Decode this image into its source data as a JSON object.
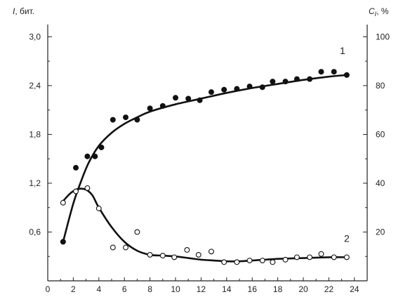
{
  "chart_data": {
    "type": "scatter",
    "title": "",
    "xlabel": "",
    "ylabel_left": {
      "symbol": "I",
      "unit": ", бит."
    },
    "ylabel_right": {
      "symbol": "C",
      "subscript": "I",
      "unit": ", %"
    },
    "xlim": [
      0,
      25
    ],
    "ylim_left": [
      0,
      3.15
    ],
    "ylim_right": [
      0,
      105
    ],
    "x_ticks": [
      "0",
      "2",
      "4",
      "6",
      "8",
      "10",
      "12",
      "14",
      "16",
      "18",
      "20",
      "22",
      "24"
    ],
    "y_left_ticks": [
      "0,6",
      "1,2",
      "1,8",
      "2,4",
      "3,0"
    ],
    "y_right_ticks": [
      "20",
      "40",
      "60",
      "80",
      "100"
    ],
    "grid": false,
    "series": [
      {
        "name": "1",
        "axis": "left",
        "marker": "filled-circle",
        "points": [
          [
            1.2,
            0.48
          ],
          [
            2.2,
            1.39
          ],
          [
            3.1,
            1.53
          ],
          [
            3.7,
            1.53
          ],
          [
            4.2,
            1.64
          ],
          [
            5.1,
            1.98
          ],
          [
            6.1,
            2.01
          ],
          [
            7.0,
            1.98
          ],
          [
            8.0,
            2.12
          ],
          [
            9.0,
            2.15
          ],
          [
            10.0,
            2.25
          ],
          [
            11.0,
            2.24
          ],
          [
            11.9,
            2.22
          ],
          [
            12.8,
            2.32
          ],
          [
            13.8,
            2.35
          ],
          [
            14.8,
            2.36
          ],
          [
            15.8,
            2.39
          ],
          [
            16.8,
            2.38
          ],
          [
            17.6,
            2.45
          ],
          [
            18.6,
            2.45
          ],
          [
            19.5,
            2.48
          ],
          [
            20.5,
            2.48
          ],
          [
            21.4,
            2.57
          ],
          [
            22.4,
            2.57
          ],
          [
            23.4,
            2.53
          ]
        ],
        "curve": [
          [
            1.2,
            0.48
          ],
          [
            2.0,
            0.95
          ],
          [
            2.6,
            1.22
          ],
          [
            3.2,
            1.45
          ],
          [
            4.0,
            1.66
          ],
          [
            5.0,
            1.82
          ],
          [
            6.0,
            1.93
          ],
          [
            7.0,
            2.01
          ],
          [
            8.0,
            2.08
          ],
          [
            10.0,
            2.17
          ],
          [
            12.0,
            2.24
          ],
          [
            14.0,
            2.31
          ],
          [
            16.0,
            2.37
          ],
          [
            18.0,
            2.42
          ],
          [
            20.0,
            2.47
          ],
          [
            22.0,
            2.51
          ],
          [
            23.4,
            2.53
          ]
        ]
      },
      {
        "name": "2",
        "axis": "left",
        "marker": "open-circle",
        "points": [
          [
            1.2,
            0.96
          ],
          [
            2.2,
            1.1
          ],
          [
            3.1,
            1.14
          ],
          [
            4.0,
            0.89
          ],
          [
            5.1,
            0.41
          ],
          [
            6.1,
            0.41
          ],
          [
            7.0,
            0.6
          ],
          [
            8.0,
            0.32
          ],
          [
            9.0,
            0.31
          ],
          [
            9.9,
            0.29
          ],
          [
            10.9,
            0.38
          ],
          [
            11.8,
            0.32
          ],
          [
            12.8,
            0.36
          ],
          [
            13.8,
            0.23
          ],
          [
            14.8,
            0.23
          ],
          [
            15.8,
            0.25
          ],
          [
            16.8,
            0.25
          ],
          [
            17.6,
            0.23
          ],
          [
            18.6,
            0.26
          ],
          [
            19.5,
            0.29
          ],
          [
            20.5,
            0.29
          ],
          [
            21.4,
            0.33
          ],
          [
            22.4,
            0.29
          ],
          [
            23.4,
            0.29
          ]
        ],
        "curve": [
          [
            1.2,
            0.98
          ],
          [
            1.8,
            1.08
          ],
          [
            2.4,
            1.13
          ],
          [
            3.0,
            1.12
          ],
          [
            3.5,
            1.05
          ],
          [
            4.0,
            0.9
          ],
          [
            5.0,
            0.66
          ],
          [
            6.0,
            0.48
          ],
          [
            7.0,
            0.37
          ],
          [
            8.0,
            0.32
          ],
          [
            9.0,
            0.31
          ],
          [
            10.0,
            0.3
          ],
          [
            11.0,
            0.28
          ],
          [
            12.0,
            0.26
          ],
          [
            13.0,
            0.25
          ],
          [
            14.0,
            0.24
          ],
          [
            15.0,
            0.24
          ],
          [
            16.0,
            0.25
          ],
          [
            17.0,
            0.26
          ],
          [
            18.0,
            0.27
          ],
          [
            20.0,
            0.28
          ],
          [
            22.0,
            0.29
          ],
          [
            23.4,
            0.29
          ]
        ]
      }
    ]
  }
}
